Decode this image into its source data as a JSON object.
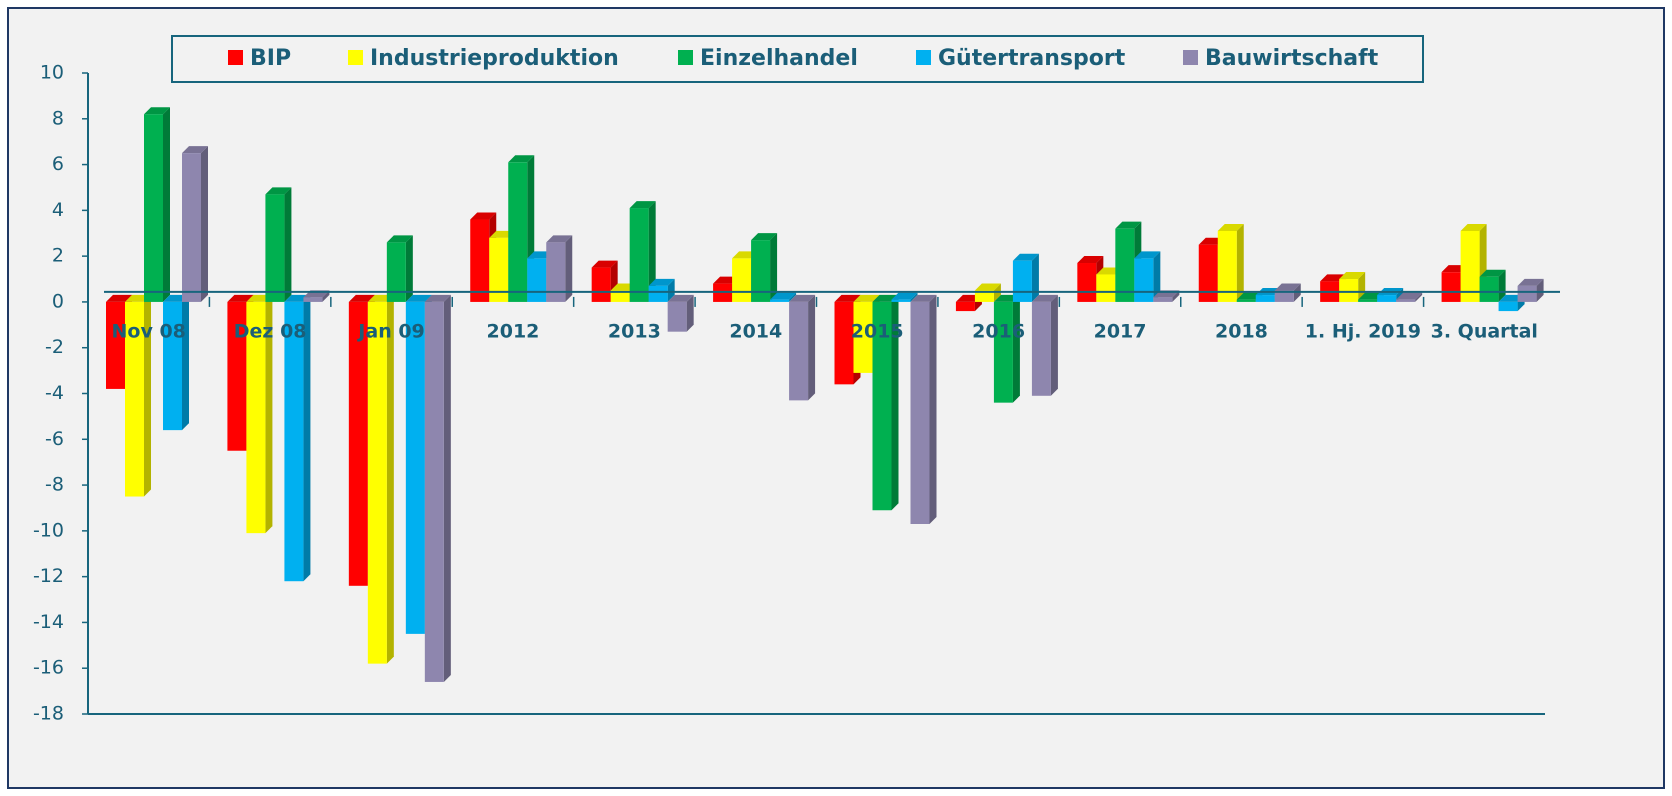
{
  "chart_data": {
    "type": "bar",
    "categories": [
      "Nov 08",
      "Dez 08",
      "Jan 09",
      "2012",
      "2013",
      "2014",
      "2015",
      "2016",
      "2017",
      "2018",
      "1. Hj. 2019",
      "3. Quartal"
    ],
    "series": [
      {
        "name": "BIP",
        "color": "#ff0000",
        "values": [
          -3.8,
          -6.5,
          -12.4,
          3.6,
          1.5,
          0.8,
          -3.6,
          -0.4,
          1.7,
          2.5,
          0.9,
          1.3
        ]
      },
      {
        "name": "Industrieproduktion",
        "color": "#ffff00",
        "values": [
          -8.5,
          -10.1,
          -15.8,
          2.8,
          0.5,
          1.9,
          -3.1,
          0.5,
          1.2,
          3.1,
          1.0,
          3.1
        ]
      },
      {
        "name": "Einzelhandel",
        "color": "#00b050",
        "values": [
          8.2,
          4.7,
          2.6,
          6.1,
          4.1,
          2.7,
          -9.1,
          -4.4,
          3.2,
          0.1,
          0.1,
          1.1
        ]
      },
      {
        "name": "Gütertransport",
        "color": "#00b0f0",
        "values": [
          -5.6,
          -12.2,
          -14.5,
          1.9,
          0.7,
          0.1,
          0.1,
          1.8,
          1.9,
          0.3,
          0.3,
          -0.4
        ]
      },
      {
        "name": "Bauwirtschaft",
        "color": "#8e86ae",
        "values": [
          6.5,
          0.2,
          -16.6,
          2.6,
          -1.3,
          -4.3,
          -9.7,
          -4.1,
          0.2,
          0.5,
          0.1,
          0.7
        ]
      }
    ],
    "ylim": [
      -18,
      10
    ],
    "yticks": [
      -18,
      -16,
      -14,
      -12,
      -10,
      -8,
      -6,
      -4,
      -2,
      0,
      2,
      4,
      6,
      8,
      10
    ],
    "legend": "top"
  }
}
